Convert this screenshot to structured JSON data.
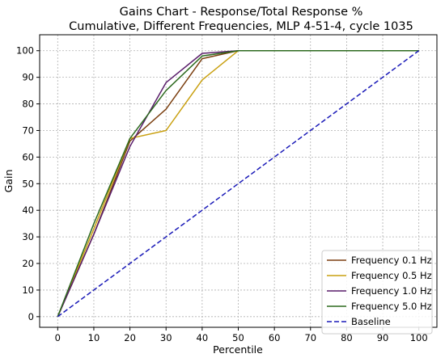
{
  "chart_data": {
    "type": "line",
    "title": "Gains Chart - Response/Total Response %",
    "subtitle": "Cumulative, Different Frequencies, MLP 4-51-4, cycle 1035",
    "xlabel": "Percentile",
    "ylabel": "Gain",
    "xlim": [
      -5,
      105
    ],
    "ylim": [
      -4,
      106
    ],
    "xticks": [
      0,
      10,
      20,
      30,
      40,
      50,
      60,
      70,
      80,
      90,
      100
    ],
    "yticks": [
      0,
      10,
      20,
      30,
      40,
      50,
      60,
      70,
      80,
      90,
      100
    ],
    "grid": true,
    "legend_position": "lower-right",
    "series": [
      {
        "name": "Frequency 0.1 Hz",
        "color": "#7b3f10",
        "dash": "solid",
        "x": [
          0,
          10,
          20,
          30,
          40,
          50,
          100
        ],
        "y": [
          0,
          31,
          66,
          78,
          97,
          100,
          100
        ]
      },
      {
        "name": "Frequency 0.5 Hz",
        "color": "#c9a010",
        "dash": "solid",
        "x": [
          0,
          10,
          20,
          30,
          40,
          50,
          100
        ],
        "y": [
          0,
          33,
          67,
          70,
          89,
          100,
          100
        ]
      },
      {
        "name": "Frequency 1.0 Hz",
        "color": "#5a1e6b",
        "dash": "solid",
        "x": [
          0,
          10,
          20,
          30,
          40,
          50,
          100
        ],
        "y": [
          0,
          31,
          64,
          88,
          99,
          100,
          100
        ]
      },
      {
        "name": "Frequency 5.0 Hz",
        "color": "#2d6a1f",
        "dash": "solid",
        "x": [
          0,
          10,
          20,
          30,
          40,
          50,
          100
        ],
        "y": [
          0,
          35,
          67,
          85,
          98,
          100,
          100
        ]
      },
      {
        "name": "Baseline",
        "color": "#1a1ab8",
        "dash": "dashed",
        "x": [
          0,
          100
        ],
        "y": [
          0,
          100
        ]
      }
    ]
  }
}
